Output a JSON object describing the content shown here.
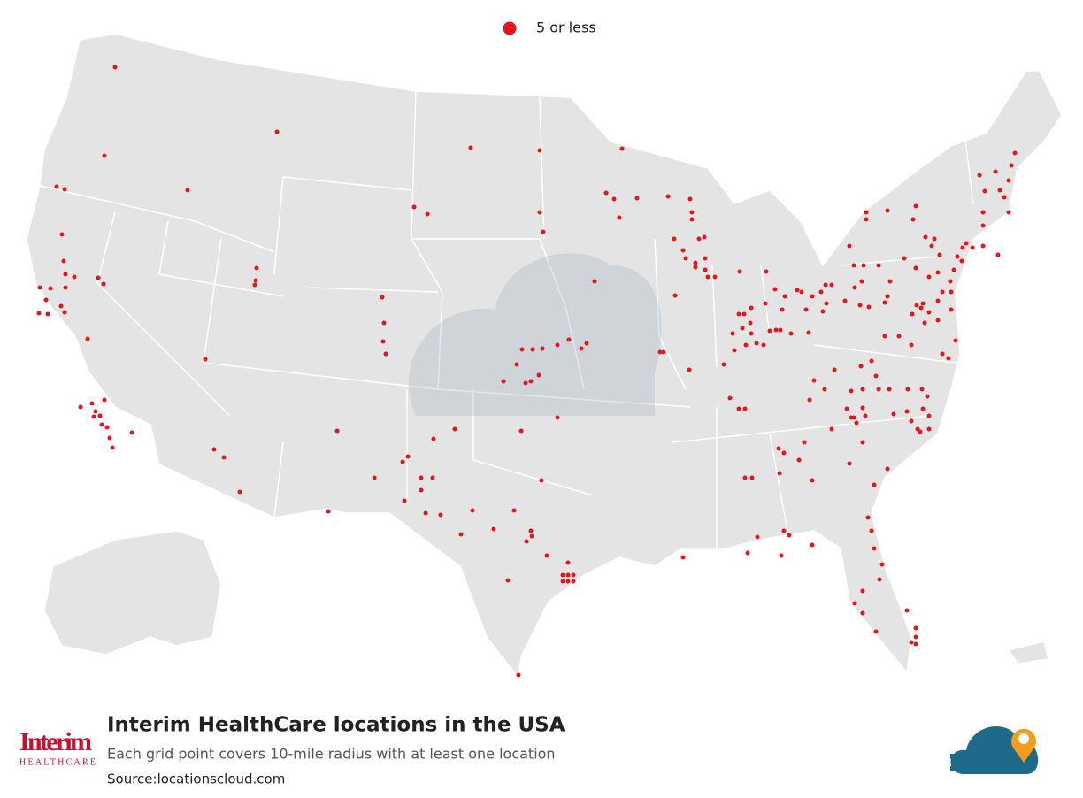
{
  "legend": {
    "label": "5 or less",
    "color": "#e8141b"
  },
  "footer": {
    "title": "Interim HealthCare locations in the USA",
    "subtitle": "Each grid point covers 10-mile radius with at least one location",
    "source": "Source:locationscloud.com"
  },
  "logo": {
    "name": "Interim",
    "tagline": "HEALTHCARE"
  }
}
